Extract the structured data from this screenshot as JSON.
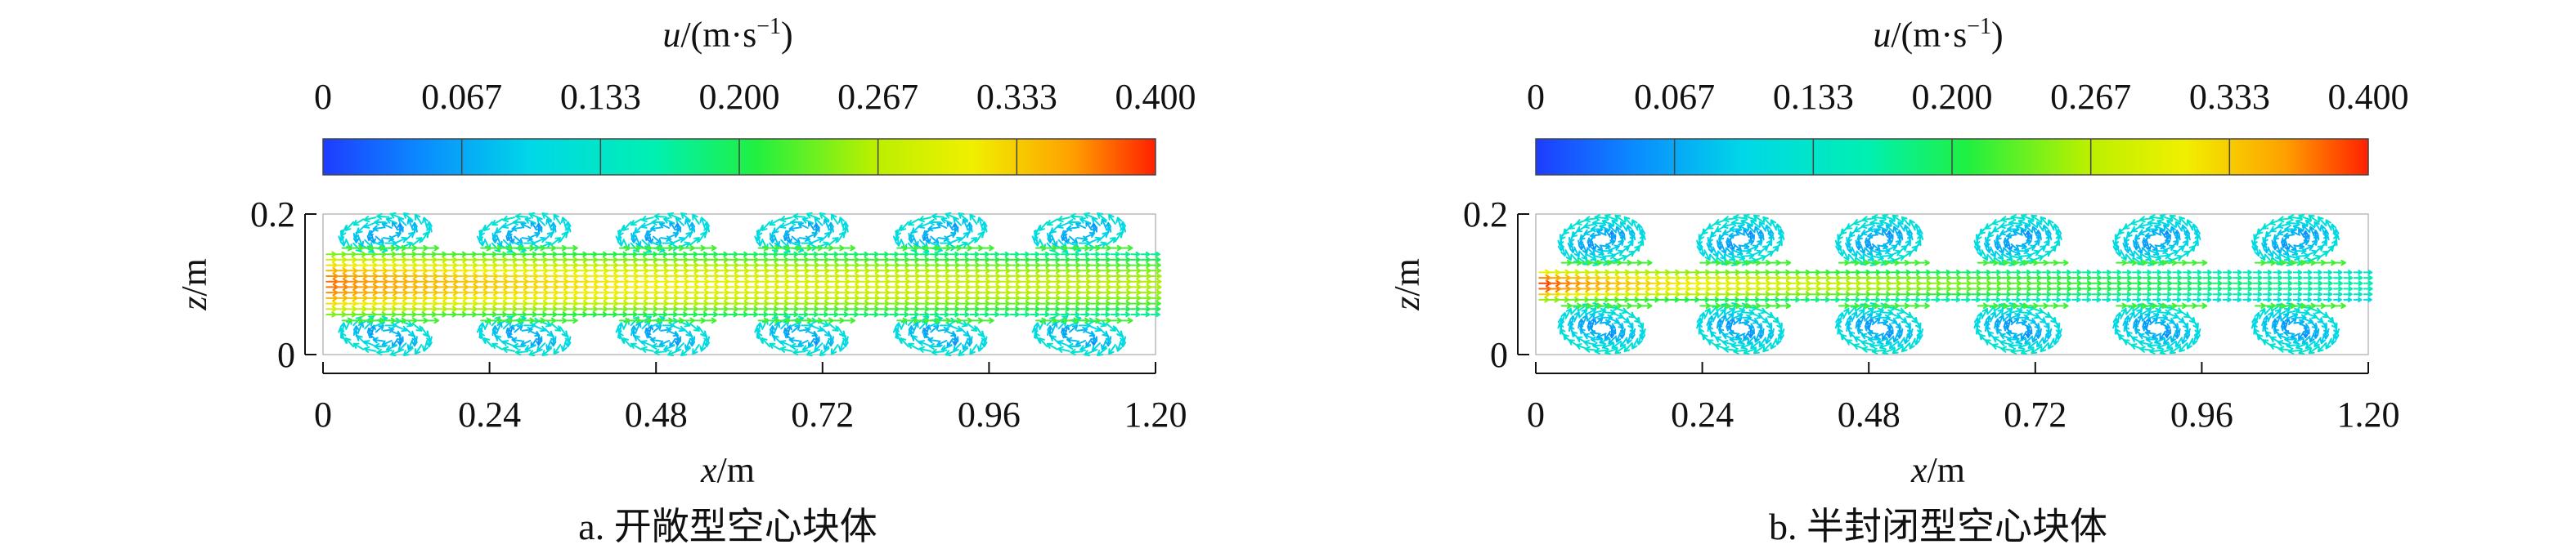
{
  "chart_data": [
    {
      "type": "vector-field",
      "caption": "a. 开敞型空心块体",
      "colorbar": {
        "label_var": "u",
        "label_unit": "/(m·s",
        "label_exp": "−1",
        "label_close": ")",
        "ticks": [
          "0",
          "0.067",
          "0.133",
          "0.200",
          "0.267",
          "0.333",
          "0.400"
        ],
        "range": [
          0,
          0.4
        ]
      },
      "xlabel_var": "x",
      "xlabel_unit": "/m",
      "ylabel_var": "z",
      "ylabel_unit": "/m",
      "xticks": [
        "0",
        "0.24",
        "0.48",
        "0.72",
        "0.96",
        "1.20"
      ],
      "xtick_values": [
        0,
        0.24,
        0.48,
        0.72,
        0.96,
        1.2
      ],
      "yticks": [
        "0",
        "0.2"
      ],
      "ytick_values": [
        0,
        0.2
      ],
      "xlim": [
        0,
        1.2
      ],
      "ylim": [
        0,
        0.2
      ],
      "jet": {
        "z_center": 0.1,
        "half_width": 0.043,
        "u_start": 0.38,
        "u_end": 0.26
      },
      "blocks": [
        {
          "x0": 0.02,
          "x1": 0.16
        },
        {
          "x0": 0.22,
          "x1": 0.36
        },
        {
          "x0": 0.42,
          "x1": 0.56
        },
        {
          "x0": 0.62,
          "x1": 0.76
        },
        {
          "x0": 0.82,
          "x1": 0.96
        },
        {
          "x0": 1.02,
          "x1": 1.16
        }
      ]
    },
    {
      "type": "vector-field",
      "caption": "b. 半封闭型空心块体",
      "colorbar": {
        "label_var": "u",
        "label_unit": "/(m·s",
        "label_exp": "−1",
        "label_close": ")",
        "ticks": [
          "0",
          "0.067",
          "0.133",
          "0.200",
          "0.267",
          "0.333",
          "0.400"
        ],
        "range": [
          0,
          0.4
        ]
      },
      "xlabel_var": "x",
      "xlabel_unit": "/m",
      "ylabel_var": "z",
      "ylabel_unit": "/m",
      "xticks": [
        "0",
        "0.24",
        "0.48",
        "0.72",
        "0.96",
        "1.20"
      ],
      "xtick_values": [
        0,
        0.24,
        0.48,
        0.72,
        0.96,
        1.2
      ],
      "yticks": [
        "0",
        "0.2"
      ],
      "ytick_values": [
        0,
        0.2
      ],
      "xlim": [
        0,
        1.2
      ],
      "ylim": [
        0,
        0.2
      ],
      "jet": {
        "z_center": 0.1,
        "half_width": 0.022,
        "u_start": 0.4,
        "u_end": 0.16
      },
      "blocks": [
        {
          "x0": 0.03,
          "x1": 0.16
        },
        {
          "x0": 0.23,
          "x1": 0.36
        },
        {
          "x0": 0.43,
          "x1": 0.56
        },
        {
          "x0": 0.63,
          "x1": 0.76
        },
        {
          "x0": 0.83,
          "x1": 0.96
        },
        {
          "x0": 1.03,
          "x1": 1.16
        }
      ]
    }
  ]
}
